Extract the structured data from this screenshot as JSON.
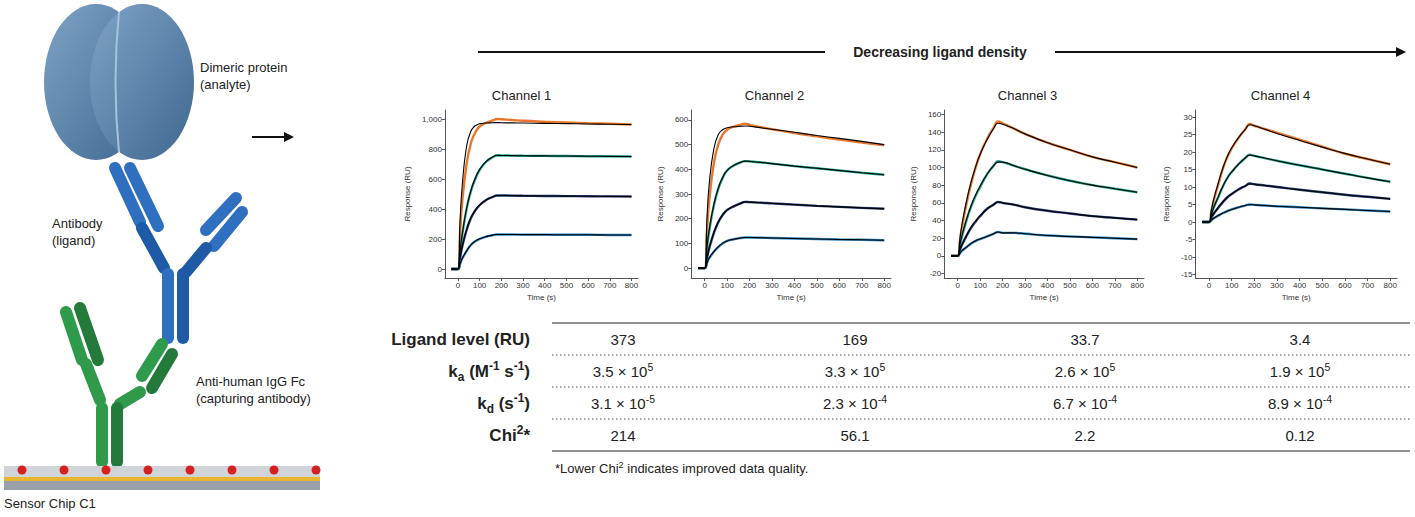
{
  "header": {
    "title": "Decreasing ligand density"
  },
  "diagram": {
    "analyte": [
      "Dimeric protein",
      "(analyte)"
    ],
    "ligand": [
      "Antibody",
      "(ligand)"
    ],
    "capture": [
      "Anti-human IgG Fc",
      "(capturing antibody)"
    ],
    "chip": [
      "Sensor Chip C1"
    ]
  },
  "chart_data": [
    {
      "type": "line",
      "title": "Channel 1",
      "x_label": "Time (s)",
      "y_label": "Response (RU)",
      "grid": false,
      "x": [
        -30,
        0,
        10,
        20,
        40,
        60,
        80,
        100,
        130,
        160,
        180,
        200,
        250,
        300,
        400,
        500,
        600,
        700,
        800
      ],
      "xlim": [
        -60,
        830
      ],
      "xticks": [
        0,
        100,
        200,
        300,
        400,
        500,
        600,
        700,
        800
      ],
      "ylim": [
        -60,
        1060
      ],
      "yticks": [
        0,
        200,
        400,
        600,
        800,
        1000
      ],
      "series": [
        {
          "color": "#e8772e",
          "values": [
            0,
            0,
            250,
            450,
            700,
            840,
            910,
            950,
            975,
            990,
            1000,
            998,
            993,
            988,
            982,
            977,
            972,
            968,
            963
          ]
        },
        {
          "color": "#22a38c",
          "values": [
            0,
            0,
            120,
            230,
            400,
            520,
            600,
            660,
            715,
            745,
            757,
            757,
            756,
            755,
            754,
            753,
            752,
            751,
            750
          ]
        },
        {
          "color": "#233a6e",
          "values": [
            0,
            0,
            75,
            150,
            260,
            340,
            390,
            425,
            460,
            480,
            490,
            490,
            489,
            488,
            487,
            486,
            485,
            484,
            483
          ]
        },
        {
          "color": "#2e86c1",
          "values": [
            0,
            0,
            35,
            70,
            120,
            160,
            185,
            200,
            215,
            225,
            230,
            230,
            230,
            229,
            229,
            228,
            228,
            227,
            227
          ]
        },
        {
          "color": "#000000",
          "values": [
            0,
            0,
            330,
            560,
            820,
            920,
            955,
            968,
            973,
            975,
            976,
            975,
            974,
            973,
            971,
            969,
            967,
            965,
            963
          ]
        },
        {
          "color": "#000000",
          "values": [
            0,
            0,
            125,
            235,
            405,
            525,
            605,
            663,
            717,
            746,
            758,
            757,
            756,
            755,
            754,
            753,
            752,
            751,
            750
          ]
        },
        {
          "color": "#000000",
          "values": [
            0,
            0,
            78,
            152,
            262,
            342,
            392,
            427,
            461,
            481,
            490,
            490,
            489,
            488,
            487,
            486,
            485,
            484,
            483
          ]
        },
        {
          "color": "#000000",
          "values": [
            0,
            0,
            36,
            71,
            121,
            161,
            186,
            201,
            216,
            226,
            230,
            230,
            230,
            229,
            229,
            228,
            228,
            227,
            227
          ]
        }
      ]
    },
    {
      "type": "line",
      "title": "Channel 2",
      "x_label": "Time (s)",
      "y_label": "Response (RU)",
      "grid": false,
      "x": [
        -30,
        0,
        10,
        20,
        40,
        60,
        80,
        100,
        130,
        160,
        180,
        200,
        250,
        300,
        400,
        500,
        600,
        700,
        800
      ],
      "xlim": [
        -60,
        830
      ],
      "xticks": [
        0,
        100,
        200,
        300,
        400,
        500,
        600,
        700,
        800
      ],
      "ylim": [
        -40,
        640
      ],
      "yticks": [
        0,
        100,
        200,
        300,
        400,
        500,
        600
      ],
      "series": [
        {
          "color": "#e8772e",
          "values": [
            0,
            0,
            150,
            270,
            420,
            500,
            540,
            560,
            573,
            580,
            585,
            580,
            570,
            562,
            547,
            533,
            520,
            508,
            497
          ]
        },
        {
          "color": "#22a38c",
          "values": [
            0,
            0,
            80,
            150,
            250,
            320,
            365,
            395,
            415,
            428,
            433,
            432,
            428,
            423,
            413,
            404,
            395,
            386,
            378
          ]
        },
        {
          "color": "#233a6e",
          "values": [
            0,
            0,
            40,
            80,
            140,
            185,
            215,
            235,
            250,
            262,
            268,
            267,
            265,
            262,
            257,
            252,
            248,
            244,
            240
          ]
        },
        {
          "color": "#2e86c1",
          "values": [
            0,
            0,
            20,
            40,
            65,
            85,
            100,
            110,
            117,
            122,
            124,
            124,
            123,
            122,
            120,
            118,
            116,
            115,
            113
          ]
        },
        {
          "color": "#000000",
          "values": [
            0,
            0,
            200,
            340,
            480,
            540,
            560,
            568,
            572,
            574,
            575,
            574,
            568,
            562,
            550,
            537,
            525,
            513,
            500
          ]
        },
        {
          "color": "#000000",
          "values": [
            0,
            0,
            85,
            155,
            255,
            323,
            367,
            396,
            416,
            428,
            433,
            432,
            428,
            423,
            413,
            404,
            395,
            386,
            378
          ]
        },
        {
          "color": "#000000",
          "values": [
            0,
            0,
            42,
            82,
            142,
            187,
            216,
            236,
            251,
            262,
            268,
            267,
            265,
            262,
            257,
            252,
            248,
            244,
            240
          ]
        },
        {
          "color": "#000000",
          "values": [
            0,
            0,
            21,
            41,
            66,
            86,
            101,
            110,
            117,
            122,
            124,
            124,
            123,
            122,
            120,
            118,
            116,
            115,
            113
          ]
        }
      ]
    },
    {
      "type": "line",
      "title": "Channel 3",
      "x_label": "Time (s)",
      "y_label": "Response (RU)",
      "grid": false,
      "x": [
        -30,
        0,
        10,
        20,
        40,
        60,
        80,
        100,
        130,
        160,
        180,
        200,
        250,
        300,
        400,
        500,
        600,
        700,
        800
      ],
      "xlim": [
        -60,
        830
      ],
      "xticks": [
        0,
        100,
        200,
        300,
        400,
        500,
        600,
        700,
        800
      ],
      "ylim": [
        -25,
        165
      ],
      "yticks": [
        -20,
        0,
        20,
        40,
        60,
        80,
        100,
        120,
        140,
        160
      ],
      "series": [
        {
          "color": "#e8772e",
          "values": [
            0,
            0,
            18,
            34,
            60,
            82,
            100,
            115,
            132,
            145,
            152,
            150,
            144,
            138,
            128,
            120,
            112,
            106,
            100
          ]
        },
        {
          "color": "#22a38c",
          "values": [
            0,
            0,
            12,
            23,
            41,
            56,
            68,
            78,
            92,
            102,
            107,
            106,
            102,
            98,
            91,
            85,
            80,
            76,
            72
          ]
        },
        {
          "color": "#233a6e",
          "values": [
            0,
            0,
            7,
            13,
            23,
            32,
            39,
            45,
            53,
            58,
            61,
            60,
            58,
            55,
            51,
            48,
            45,
            43,
            41
          ]
        },
        {
          "color": "#2e86c1",
          "values": [
            0,
            0,
            3,
            6,
            10,
            14,
            17,
            19,
            22,
            25,
            27,
            26,
            26,
            25,
            23,
            22,
            21,
            20,
            19
          ]
        },
        {
          "color": "#000000",
          "values": [
            0,
            0,
            20,
            37,
            63,
            84,
            101,
            115,
            131,
            144,
            150,
            149,
            144,
            138,
            128,
            120,
            112,
            106,
            100
          ]
        },
        {
          "color": "#000000",
          "values": [
            0,
            0,
            13,
            24,
            42,
            57,
            69,
            79,
            92,
            102,
            106,
            106,
            102,
            98,
            91,
            85,
            80,
            76,
            72
          ]
        },
        {
          "color": "#000000",
          "values": [
            0,
            0,
            7.5,
            13.5,
            23.5,
            32.5,
            39.5,
            45.5,
            53,
            58,
            61,
            60,
            58,
            55,
            51,
            48,
            45,
            43,
            41
          ]
        },
        {
          "color": "#000000",
          "values": [
            0,
            0,
            3.2,
            6.2,
            10.2,
            14.2,
            17.2,
            19.2,
            22,
            25,
            27,
            26,
            26,
            25,
            23,
            22,
            21,
            20,
            19
          ]
        }
      ]
    },
    {
      "type": "line",
      "title": "Channel 4",
      "x_label": "Time (s)",
      "y_label": "Response (RU)",
      "grid": false,
      "x": [
        -30,
        0,
        10,
        20,
        40,
        60,
        80,
        100,
        130,
        160,
        180,
        200,
        250,
        300,
        400,
        500,
        600,
        700,
        800
      ],
      "xlim": [
        -60,
        830
      ],
      "xticks": [
        0,
        100,
        200,
        300,
        400,
        500,
        600,
        700,
        800
      ],
      "ylim": [
        -16,
        32
      ],
      "yticks": [
        -15,
        -10,
        -5,
        0,
        5,
        10,
        15,
        20,
        25,
        30
      ],
      "series": [
        {
          "color": "#e8772e",
          "values": [
            0,
            0,
            3,
            6,
            10.5,
            15,
            18.5,
            21,
            24,
            26.5,
            28,
            27.5,
            26.5,
            25.5,
            23.5,
            21.5,
            19.5,
            18,
            16.5
          ]
        },
        {
          "color": "#22a38c",
          "values": [
            0,
            0,
            2,
            4,
            7,
            10,
            12.5,
            14.3,
            16.5,
            18.3,
            19.2,
            18.9,
            18.2,
            17.5,
            16.2,
            15,
            13.8,
            12.6,
            11.5
          ]
        },
        {
          "color": "#233a6e",
          "values": [
            0,
            0,
            1.2,
            2.3,
            4,
            5.6,
            7,
            8,
            9.3,
            10.3,
            11,
            10.8,
            10.4,
            10,
            9.2,
            8.5,
            7.8,
            7.2,
            6.6
          ]
        },
        {
          "color": "#2e86c1",
          "values": [
            0,
            0,
            0.5,
            1,
            1.8,
            2.5,
            3.1,
            3.6,
            4.2,
            4.7,
            5,
            4.9,
            4.7,
            4.5,
            4.2,
            3.9,
            3.6,
            3.3,
            3
          ]
        },
        {
          "color": "#000000",
          "values": [
            0,
            0,
            3.3,
            6.3,
            11,
            15.2,
            18.6,
            21.2,
            24.1,
            26.5,
            27.8,
            27.5,
            26.4,
            25.3,
            23.3,
            21.4,
            19.6,
            18,
            16.5
          ]
        },
        {
          "color": "#000000",
          "values": [
            0,
            0,
            2.1,
            4.1,
            7.1,
            10.1,
            12.5,
            14.3,
            16.5,
            18.3,
            19.1,
            18.9,
            18.2,
            17.5,
            16.2,
            15,
            13.8,
            12.6,
            11.5
          ]
        },
        {
          "color": "#000000",
          "values": [
            0,
            0,
            1.3,
            2.4,
            4.1,
            5.7,
            7,
            8,
            9.3,
            10.3,
            10.9,
            10.8,
            10.4,
            10,
            9.2,
            8.5,
            7.8,
            7.2,
            6.6
          ]
        },
        {
          "color": "#000000",
          "values": [
            0,
            0,
            0.55,
            1.05,
            1.85,
            2.5,
            3.1,
            3.6,
            4.2,
            4.7,
            4.95,
            4.9,
            4.7,
            4.5,
            4.2,
            3.9,
            3.6,
            3.3,
            3
          ]
        }
      ]
    }
  ],
  "table": {
    "rows": [
      {
        "label": "Ligand level (RU)",
        "cells": [
          "373",
          "169",
          "33.7",
          "3.4"
        ]
      },
      {
        "label": [
          {
            "text": "k"
          },
          {
            "text": "a",
            "sub": true
          },
          {
            "text": " (M"
          },
          {
            "text": "-1",
            "sup": true
          },
          {
            "text": " s"
          },
          {
            "text": "-1",
            "sup": true
          },
          {
            "text": ")"
          }
        ],
        "cells": [
          [
            {
              "text": "3.5 × 10"
            },
            {
              "text": "5",
              "sup": true
            }
          ],
          [
            {
              "text": "3.3 × 10"
            },
            {
              "text": "5",
              "sup": true
            }
          ],
          [
            {
              "text": "2.6 × 10"
            },
            {
              "text": "5",
              "sup": true
            }
          ],
          [
            {
              "text": "1.9 × 10"
            },
            {
              "text": "5",
              "sup": true
            }
          ]
        ]
      },
      {
        "label": [
          {
            "text": "k"
          },
          {
            "text": "d",
            "sub": true
          },
          {
            "text": " (s"
          },
          {
            "text": "-1",
            "sup": true
          },
          {
            "text": ")"
          }
        ],
        "cells": [
          [
            {
              "text": "3.1 × 10"
            },
            {
              "text": "-5",
              "sup": true
            }
          ],
          [
            {
              "text": "2.3 × 10"
            },
            {
              "text": "-4",
              "sup": true
            }
          ],
          [
            {
              "text": "6.7 × 10"
            },
            {
              "text": "-4",
              "sup": true
            }
          ],
          [
            {
              "text": "8.9 × 10"
            },
            {
              "text": "-4",
              "sup": true
            }
          ]
        ]
      },
      {
        "label": [
          {
            "text": "Chi"
          },
          {
            "text": "2",
            "sup": true
          },
          {
            "text": "*"
          }
        ],
        "cells": [
          "214",
          "56.1",
          "2.2",
          "0.12"
        ]
      }
    ],
    "footnote": [
      {
        "text": "*Lower Chi"
      },
      {
        "text": "2",
        "sup": true
      },
      {
        "text": " indicates improved data quality."
      }
    ]
  }
}
